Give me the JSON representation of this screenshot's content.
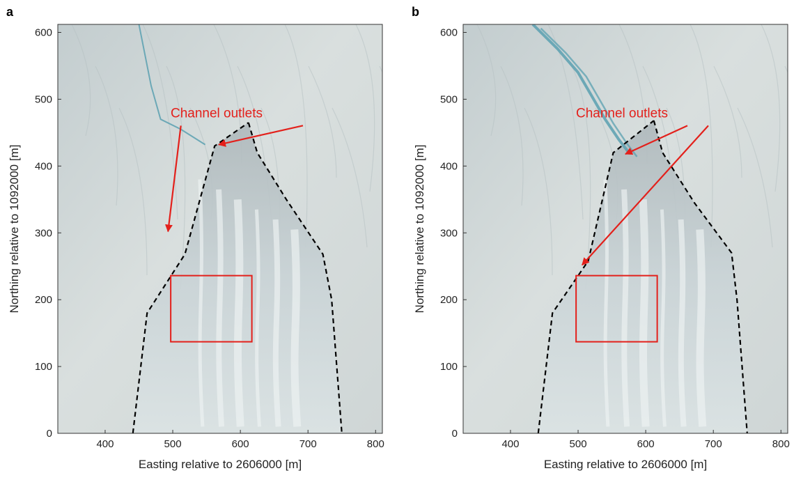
{
  "figure": {
    "panels": [
      {
        "id": "a",
        "label": "a",
        "xlabel": "Easting relative to 2606000 [m]",
        "ylabel": "Northing relative to 1092000 [m]",
        "xlim": [
          330,
          810
        ],
        "ylim": [
          0,
          612
        ],
        "xticks": [
          400,
          500,
          600,
          700,
          800
        ],
        "yticks": [
          0,
          100,
          200,
          300,
          400,
          500,
          600
        ],
        "annotation": "Channel outlets",
        "annotation_anchor": [
          502,
          473
        ],
        "arrow_targets": [
          [
            493,
            302
          ],
          [
            568,
            432
          ]
        ],
        "outline_left": [
          [
            441,
            0
          ],
          [
            462,
            180
          ],
          [
            518,
            268
          ],
          [
            562,
            430
          ],
          [
            612,
            465
          ]
        ],
        "outline_right": [
          [
            612,
            465
          ],
          [
            625,
            420
          ],
          [
            668,
            350
          ],
          [
            722,
            268
          ],
          [
            735,
            200
          ],
          [
            750,
            0
          ]
        ],
        "box": [
          [
            497,
            137
          ],
          [
            617,
            236
          ]
        ],
        "river_path": [
          [
            450,
            612
          ],
          [
            468,
            520
          ],
          [
            482,
            470
          ],
          [
            512,
            455
          ],
          [
            548,
            432
          ]
        ]
      },
      {
        "id": "b",
        "label": "b",
        "xlabel": "Easting relative to 2606000 [m]",
        "ylabel": "Northing relative to 1092000 [m]",
        "xlim": [
          330,
          810
        ],
        "ylim": [
          0,
          612
        ],
        "xticks": [
          400,
          500,
          600,
          700,
          800
        ],
        "yticks": [
          0,
          100,
          200,
          300,
          400,
          500,
          600
        ],
        "annotation": "Channel outlets",
        "annotation_anchor": [
          502,
          473
        ],
        "arrow_targets": [
          [
            570,
            418
          ],
          [
            506,
            252
          ]
        ],
        "outline_left": [
          [
            441,
            0
          ],
          [
            462,
            180
          ],
          [
            515,
            258
          ],
          [
            552,
            420
          ],
          [
            612,
            468
          ]
        ],
        "outline_right": [
          [
            612,
            468
          ],
          [
            625,
            420
          ],
          [
            672,
            345
          ],
          [
            727,
            270
          ],
          [
            735,
            200
          ],
          [
            750,
            0
          ]
        ],
        "box": [
          [
            497,
            137
          ],
          [
            617,
            236
          ]
        ],
        "river_path": [
          [
            433,
            612
          ],
          [
            470,
            575
          ],
          [
            500,
            540
          ],
          [
            520,
            505
          ],
          [
            540,
            470
          ],
          [
            560,
            440
          ],
          [
            575,
            420
          ]
        ]
      }
    ],
    "colors": {
      "annotation": "#e3201b",
      "outline": "#000000",
      "river": "#5aa0b0"
    }
  }
}
